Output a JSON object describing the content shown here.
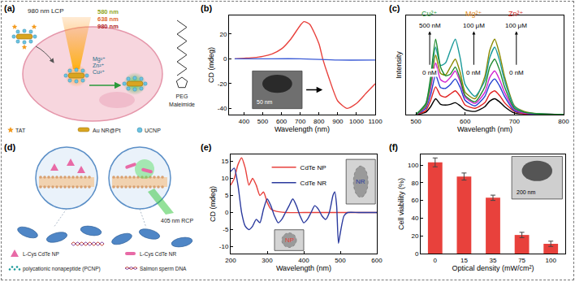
{
  "diagrams": [
    {
      "panel": "(a)",
      "laser": "980 nm LCP",
      "emissions": [
        {
          "text": "580 nm",
          "color": "#8fa51c"
        },
        {
          "text": "638 nm",
          "color": "#e0662a"
        },
        {
          "text": "980 nm",
          "color": "#b0231f"
        }
      ],
      "ions": [
        "Mg²⁺",
        "Zn²⁺",
        "Cu²⁺"
      ],
      "marker_label": "TAT",
      "polymer": "PEG",
      "linker": "Maleimide",
      "core": "Au NR@Pt",
      "shell": "UCNP"
    },
    {
      "panel": "(d)",
      "laser": "405 nm RCP",
      "key": [
        "L-Cys CdTe NP",
        "L-Cys CdTe NR",
        "polycationic nonapeptide (PCNP)",
        "Salmon sperm DNA"
      ]
    }
  ],
  "chart_data": [
    {
      "panel": "(b)",
      "type": "line",
      "x_label": "Wavelength (nm)",
      "y_label": "CD (mdeg)",
      "xlim": [
        320,
        1100
      ],
      "xticks": [
        400,
        500,
        600,
        700,
        800,
        900,
        1000,
        1100
      ],
      "ylim": [
        -45,
        35
      ],
      "yticks": [
        -40,
        -20,
        0,
        20
      ],
      "series": [
        {
          "color": "#e8413c",
          "x": [
            350,
            400,
            450,
            500,
            550,
            600,
            650,
            700,
            720,
            750,
            800,
            820,
            850,
            900,
            950,
            1000,
            1050,
            1100
          ],
          "values": [
            0,
            0.5,
            1,
            2,
            4,
            8,
            16,
            27,
            30,
            28,
            12,
            0,
            -14,
            -34,
            -40,
            -36,
            -28,
            -20
          ]
        },
        {
          "color": "#3b5bd6",
          "x": [
            350,
            500,
            700,
            900,
            1100
          ],
          "values": [
            0,
            0,
            0,
            -1,
            -1
          ]
        }
      ],
      "annotations": [
        "50 nm"
      ]
    },
    {
      "panel": "(c)",
      "type": "line",
      "x_label": "Wavelength (nm)",
      "y_label": "Intensity",
      "xlim": [
        480,
        800
      ],
      "xticks": [
        500,
        600,
        700,
        800
      ],
      "ylim": [
        0,
        125
      ],
      "tick_labels": "x",
      "x": [
        500,
        520,
        530,
        540,
        550,
        560,
        570,
        580,
        590,
        600,
        620,
        640,
        650,
        660,
        670,
        680,
        700,
        720,
        750,
        800
      ],
      "series": [
        {
          "color": "#000000",
          "values": [
            0,
            3,
            10,
            20,
            13,
            12,
            13,
            15,
            11,
            6,
            4,
            10,
            17,
            20,
            16,
            10,
            2,
            1,
            0,
            0
          ]
        },
        {
          "color": "#e02020",
          "values": [
            0,
            5,
            18,
            35,
            24,
            22,
            26,
            30,
            23,
            12,
            8,
            15,
            26,
            30,
            24,
            15,
            4,
            1,
            0,
            0
          ]
        },
        {
          "color": "#2040d0",
          "values": [
            0,
            8,
            25,
            50,
            34,
            33,
            38,
            45,
            34,
            18,
            11,
            23,
            38,
            45,
            36,
            23,
            5,
            2,
            0,
            0
          ]
        },
        {
          "color": "#d020d0",
          "values": [
            0,
            10,
            33,
            65,
            44,
            41,
            47,
            55,
            41,
            22,
            14,
            28,
            47,
            55,
            44,
            28,
            7,
            2,
            1,
            0
          ]
        },
        {
          "color": "#8a8a00",
          "values": [
            0,
            11,
            38,
            75,
            52,
            50,
            60,
            70,
            53,
            28,
            20,
            48,
            81,
            95,
            76,
            48,
            11,
            4,
            1,
            0
          ]
        },
        {
          "color": "#1a9a9a",
          "values": [
            0,
            13,
            43,
            85,
            62,
            65,
            81,
            95,
            71,
            38,
            23,
            43,
            72,
            85,
            68,
            43,
            10,
            3,
            1,
            0
          ]
        },
        {
          "color": "#1f8a2e",
          "values": [
            0,
            14,
            48,
            95,
            60,
            49,
            51,
            60,
            45,
            24,
            16,
            35,
            60,
            70,
            56,
            35,
            8,
            3,
            1,
            0
          ]
        }
      ],
      "annotations": [
        {
          "text": "Cu²⁺",
          "color": "#1f9a3a",
          "high": "500 nM",
          "low": "0 nM"
        },
        {
          "text": "Mg²⁺",
          "color": "#e08a1a",
          "high": "100 μM",
          "low": "0 nM"
        },
        {
          "text": "Zn²⁺",
          "color": "#d42a2a",
          "high": "100 μM",
          "low": "0 nM"
        }
      ]
    },
    {
      "panel": "(e)",
      "type": "line",
      "x_label": "Wavelength (nm)",
      "y_label": "CD (mdeg)",
      "xlim": [
        200,
        600
      ],
      "xticks": [
        200,
        300,
        400,
        500,
        600
      ],
      "ylim": [
        -12,
        17
      ],
      "yticks": [
        -10,
        -5,
        0,
        5,
        10,
        15
      ],
      "legend": "top",
      "series": [
        {
          "name": "CdTe NP",
          "color": "#e8413c",
          "x": [
            200,
            210,
            220,
            230,
            240,
            250,
            260,
            270,
            280,
            290,
            300,
            310,
            320,
            350,
            400,
            500,
            600
          ],
          "values": [
            8,
            10,
            14,
            16,
            13,
            8,
            10,
            8,
            5,
            6,
            3,
            1,
            0.5,
            0,
            0,
            0,
            0
          ]
        },
        {
          "name": "CdTe NR",
          "color": "#2b3a9e",
          "x": [
            200,
            210,
            220,
            230,
            240,
            250,
            260,
            270,
            280,
            290,
            300,
            310,
            320,
            330,
            340,
            350,
            360,
            370,
            380,
            390,
            400,
            410,
            420,
            430,
            440,
            450,
            460,
            470,
            480,
            485,
            490,
            495,
            500,
            510,
            520,
            550,
            600
          ],
          "values": [
            12,
            13,
            8,
            0,
            -4,
            -5,
            -4,
            -2,
            -3,
            1,
            4,
            2,
            -1,
            -3,
            -2,
            0,
            2,
            4,
            2,
            -1,
            -3,
            -2,
            0,
            2,
            1,
            -1,
            -2,
            0,
            5,
            6,
            2,
            -9,
            -6,
            -1,
            0,
            0,
            0
          ]
        }
      ],
      "annotations": [
        "NR",
        "NP"
      ]
    },
    {
      "panel": "(f)",
      "type": "bar",
      "x_label": "Optical density (mW/cm²)",
      "y_label": "Cell viability (%)",
      "categories": [
        "0",
        "15",
        "35",
        "75",
        "100"
      ],
      "values": [
        103,
        87,
        63,
        21,
        11
      ],
      "errors": [
        5,
        4,
        3,
        3,
        3
      ],
      "color": "#e8413c",
      "ylim": [
        0,
        112
      ],
      "yticks": [
        0,
        20,
        40,
        60,
        80,
        100
      ],
      "annotations": [
        "200 nm"
      ]
    }
  ]
}
